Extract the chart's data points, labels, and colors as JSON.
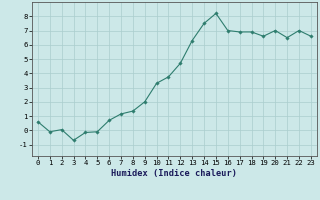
{
  "x": [
    0,
    1,
    2,
    3,
    4,
    5,
    6,
    7,
    8,
    9,
    10,
    11,
    12,
    13,
    14,
    15,
    16,
    17,
    18,
    19,
    20,
    21,
    22,
    23
  ],
  "y": [
    0.6,
    -0.1,
    0.05,
    -0.7,
    -0.15,
    -0.1,
    0.7,
    1.15,
    1.35,
    2.0,
    3.3,
    3.75,
    4.7,
    6.3,
    7.5,
    8.2,
    7.0,
    6.9,
    6.9,
    6.6,
    7.0,
    6.5,
    7.0,
    6.6
  ],
  "line_color": "#2e7d6e",
  "marker": "D",
  "marker_size": 1.8,
  "bg_color": "#cce8e8",
  "grid_color": "#aacece",
  "xlabel": "Humidex (Indice chaleur)",
  "xlim": [
    -0.5,
    23.5
  ],
  "ylim": [
    -1.8,
    9.0
  ],
  "yticks": [
    -1,
    0,
    1,
    2,
    3,
    4,
    5,
    6,
    7,
    8
  ],
  "xticks": [
    0,
    1,
    2,
    3,
    4,
    5,
    6,
    7,
    8,
    9,
    10,
    11,
    12,
    13,
    14,
    15,
    16,
    17,
    18,
    19,
    20,
    21,
    22,
    23
  ],
  "tick_fontsize": 5.2,
  "xlabel_fontsize": 6.2
}
